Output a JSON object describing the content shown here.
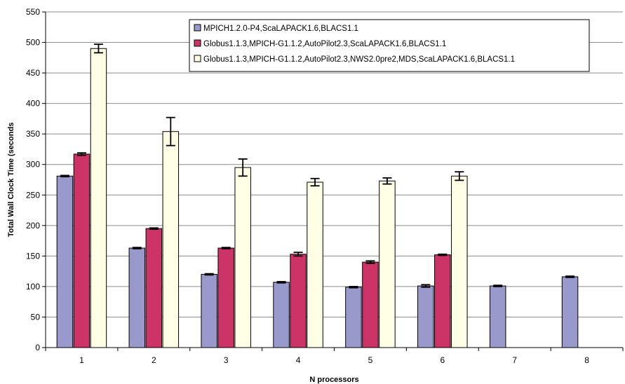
{
  "chart_data": {
    "type": "bar",
    "title": "",
    "xlabel": "N processors",
    "ylabel": "Total Wall Clock Time (seconds",
    "ylim": [
      0,
      550
    ],
    "ytick_step": 50,
    "yticks": [
      "0",
      "50",
      "100",
      "150",
      "200",
      "250",
      "300",
      "350",
      "400",
      "450",
      "500",
      "550"
    ],
    "categories": [
      "1",
      "2",
      "3",
      "4",
      "5",
      "6",
      "7",
      "8"
    ],
    "grid": true,
    "legend_position": "top-center",
    "series": [
      {
        "name": "MPICH1.2.0-P4,ScaLAPACK1.6,BLACS1.1",
        "color": "#9999cc",
        "values": [
          281,
          163,
          120,
          107,
          99,
          101,
          101,
          116
        ],
        "errors": [
          1,
          1,
          1,
          1,
          1,
          2,
          1,
          1
        ]
      },
      {
        "name": "Globus1.1.3,MPICH-G1.1.2,AutoPilot2.3,ScaLAPACK1.6,BLACS1.1",
        "color": "#cc3366",
        "values": [
          317,
          195,
          163,
          153,
          140,
          152,
          null,
          null
        ],
        "errors": [
          2,
          1,
          1,
          3,
          2,
          1,
          null,
          null
        ]
      },
      {
        "name": "Globus1.1.3,MPICH-G1.1.2,AutoPilot2.3,NWS2.0pre2,MDS,ScaLAPACK1.6,BLACS1.1",
        "color": "#ffffe6",
        "values": [
          490,
          354,
          295,
          271,
          273,
          281,
          null,
          null
        ],
        "errors": [
          7,
          23,
          14,
          6,
          5,
          7,
          null,
          null
        ]
      }
    ]
  }
}
